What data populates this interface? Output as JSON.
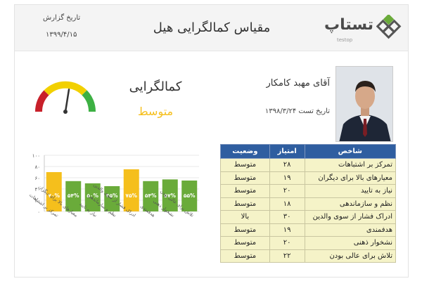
{
  "header": {
    "report_date_label": "تاریخ گزارش",
    "report_date_value": "۱۳۹۹/۴/۱۵",
    "title": "مقیاس کمالگرایی هیل",
    "logo_text": "تستاپ",
    "logo_sub": "testop"
  },
  "profile": {
    "name": "آقای مهبد کامکار",
    "test_date": "تاریخ تست ۱۳۹۸/۳/۲۴",
    "trait_title": "کمالگرایی",
    "trait_level": "متوسط"
  },
  "gauge": {
    "value_fraction": 0.55
  },
  "table": {
    "headers": {
      "trait": "شاخص",
      "score": "امتیاز",
      "status": "وضعیت"
    },
    "rows": [
      {
        "trait": "تمرکز بر اشتباهات",
        "score": "۲۸",
        "status": "متوسط"
      },
      {
        "trait": "معیارهای بالا برای دیگران",
        "score": "۱۹",
        "status": "متوسط"
      },
      {
        "trait": "نیاز به تایید",
        "score": "۲۰",
        "status": "متوسط"
      },
      {
        "trait": "نظم و سازماندهی",
        "score": "۱۸",
        "status": "متوسط"
      },
      {
        "trait": "ادراک فشار از سوی والدین",
        "score": "۳۰",
        "status": "بالا"
      },
      {
        "trait": "هدفمندی",
        "score": "۱۹",
        "status": "متوسط"
      },
      {
        "trait": "نشخوار ذهنی",
        "score": "۲۰",
        "status": "متوسط"
      },
      {
        "trait": "تلاش برای عالی بودن",
        "score": "۲۲",
        "status": "متوسط"
      }
    ]
  },
  "chart_data": {
    "type": "bar",
    "categories": [
      "تمرکز بر اشتباهات",
      "معیارهای بالا برای دیگران",
      "نیاز به تایید",
      "نظم و سازماندهی",
      "ادراک فشار از سوی والدین",
      "هدفمندی",
      "نشخوار ذهنی",
      "تلاش برای عالی بودن"
    ],
    "values": [
      70,
      54,
      50,
      45,
      75,
      54,
      57,
      55
    ],
    "value_labels": [
      "۷۰%",
      "۵۴%",
      "۵۰%",
      "۴۵%",
      "۷۵%",
      "۵۴%",
      "۵۷%",
      "۵۵%"
    ],
    "bar_colors": [
      "#f5bf1c",
      "#6aab3a",
      "#6aab3a",
      "#6aab3a",
      "#f5bf1c",
      "#6aab3a",
      "#6aab3a",
      "#6aab3a"
    ],
    "ylim": [
      0,
      100
    ],
    "yticks": [
      0,
      20,
      40,
      60,
      80,
      100
    ],
    "ytick_labels": [
      "۰",
      "۲۰",
      "۴۰",
      "۶۰",
      "۸۰",
      "۱۰۰"
    ],
    "grid": true,
    "title": "",
    "xlabel": "",
    "ylabel": ""
  },
  "colors": {
    "accent_blue": "#2f5ea0",
    "high": "#f5bf1c",
    "normal": "#6aab3a",
    "table_bg": "#f5f3c8"
  }
}
